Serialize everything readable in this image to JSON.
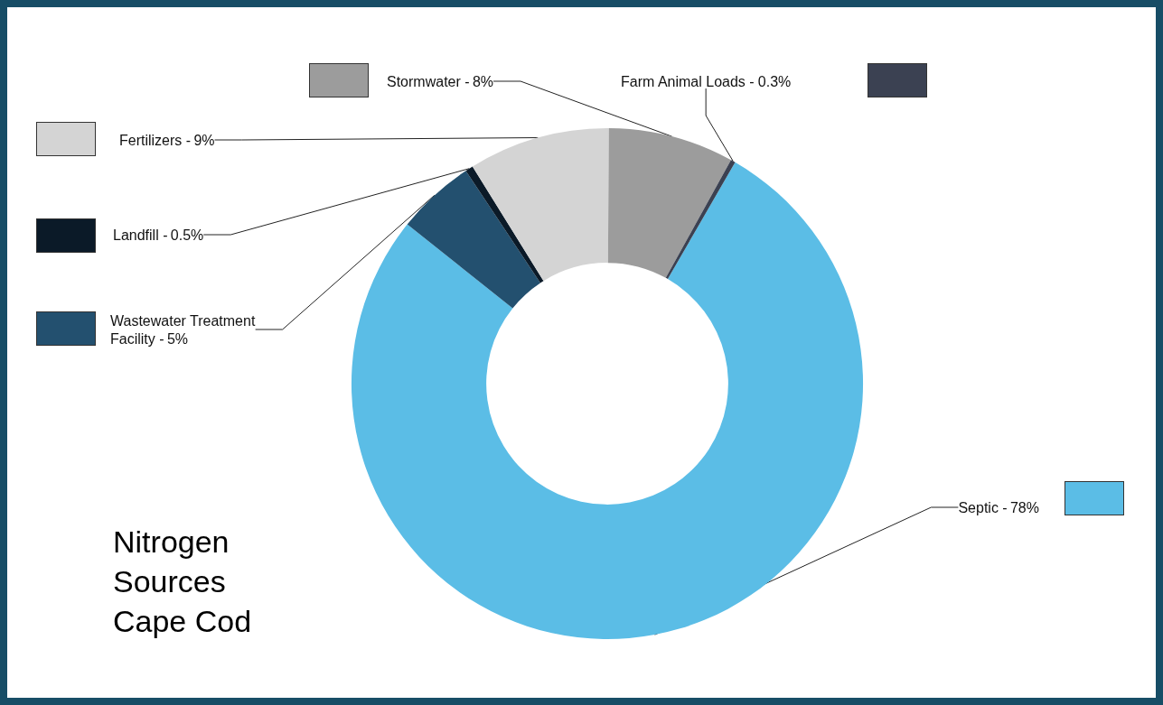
{
  "chart_data": {
    "type": "donut",
    "title": "Nitrogen Sources Cape Cod",
    "categories": [
      "Septic -",
      "Wastewater Treatment Facility -",
      "Landfill -",
      "Fertilizers -",
      "Stormwater -",
      "Farm Animal Loads -"
    ],
    "values": [
      78,
      5,
      0.5,
      9,
      8,
      0.3
    ],
    "value_labels": [
      "78%",
      "5%",
      "0.5%",
      "9%",
      "8%",
      "0.3%"
    ],
    "colors": [
      "#5bbde6",
      "#23506f",
      "#0b1a28",
      "#d4d4d4",
      "#9c9c9c",
      "#3b4152"
    ],
    "legend": "left"
  }
}
